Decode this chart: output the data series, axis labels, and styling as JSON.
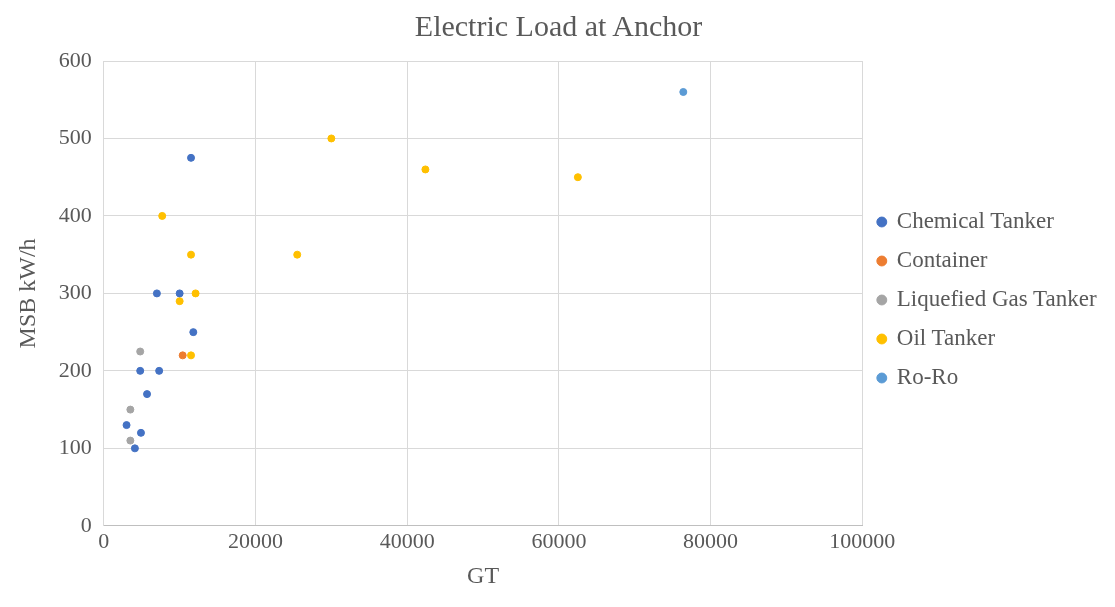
{
  "chart_data": {
    "type": "scatter",
    "title": "Electric Load at Anchor",
    "xlabel": "GT",
    "ylabel": "MSB kW/h",
    "series": [
      {
        "name": "Chemical Tanker",
        "color": "#4472c4",
        "x": [
          11500,
          7000,
          10000,
          11800,
          4800,
          7300,
          5700,
          3000,
          4900,
          4100
        ],
        "values": [
          475,
          300,
          300,
          250,
          200,
          200,
          170,
          130,
          120,
          100
        ]
      },
      {
        "name": "Container",
        "color": "#ed7d31",
        "x": [
          10400
        ],
        "values": [
          220
        ]
      },
      {
        "name": "Liquefied Gas Tanker",
        "color": "#a5a5a5",
        "x": [
          4800,
          3500,
          3500
        ],
        "values": [
          225,
          150,
          110
        ]
      },
      {
        "name": "Oil Tanker",
        "color": "#ffc000",
        "x": [
          7700,
          11500,
          12100,
          10000,
          11500,
          25500,
          30000,
          42400,
          62500
        ],
        "values": [
          400,
          350,
          300,
          290,
          220,
          350,
          500,
          460,
          450
        ]
      },
      {
        "name": "Ro-Ro",
        "color": "#5b9bd5",
        "x": [
          76400
        ],
        "values": [
          560
        ]
      }
    ],
    "xlim": [
      0,
      100000
    ],
    "xticks": [
      0,
      20000,
      40000,
      60000,
      80000,
      100000
    ],
    "ylim": [
      0,
      600
    ],
    "yticks": [
      0,
      100,
      200,
      300,
      400,
      500,
      600
    ],
    "grid": true,
    "legend": "right",
    "marker": "circle"
  }
}
